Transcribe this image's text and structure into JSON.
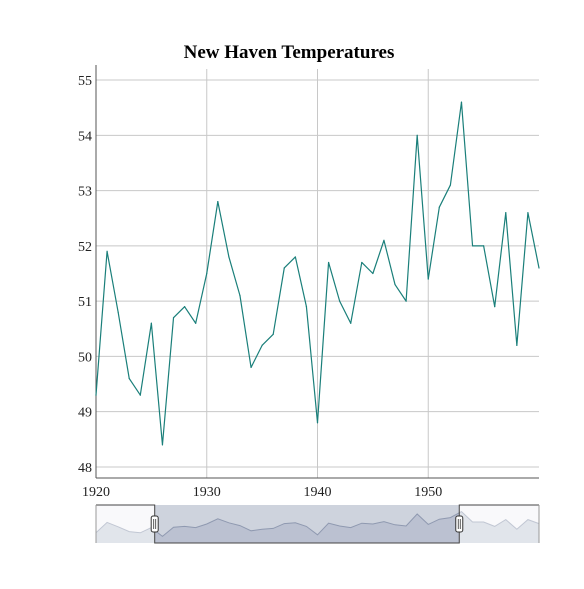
{
  "chart_data": {
    "type": "line",
    "title": "New Haven Temperatures",
    "xlabel": "",
    "ylabel": "",
    "xlim": [
      1920,
      1960
    ],
    "ylim": [
      47.8,
      55.2
    ],
    "x_ticks": [
      1920,
      1930,
      1940,
      1950
    ],
    "y_ticks": [
      48,
      49,
      50,
      51,
      52,
      53,
      54,
      55
    ],
    "grid": true,
    "x": [
      1920,
      1921,
      1922,
      1923,
      1924,
      1925,
      1926,
      1927,
      1928,
      1929,
      1930,
      1931,
      1932,
      1933,
      1934,
      1935,
      1936,
      1937,
      1938,
      1939,
      1940,
      1941,
      1942,
      1943,
      1944,
      1945,
      1946,
      1947,
      1948,
      1949,
      1950,
      1951,
      1952,
      1953,
      1954,
      1955,
      1956,
      1957,
      1958,
      1959,
      1960
    ],
    "series": [
      {
        "values": [
          49.3,
          51.9,
          50.8,
          49.6,
          49.3,
          50.6,
          48.4,
          50.7,
          50.9,
          50.6,
          51.5,
          52.8,
          51.8,
          51.1,
          49.8,
          50.2,
          50.4,
          51.6,
          51.8,
          50.9,
          48.8,
          51.7,
          51.0,
          50.6,
          51.7,
          51.5,
          52.1,
          51.3,
          51.0,
          54.0,
          51.4,
          52.7,
          53.1,
          54.6,
          52.0,
          52.0,
          50.9,
          52.6,
          50.2,
          52.6,
          51.6
        ],
        "color": "#1a7f7a"
      }
    ],
    "range_selector": {
      "selected_x_range": [
        1925.3,
        1952.8
      ]
    }
  }
}
